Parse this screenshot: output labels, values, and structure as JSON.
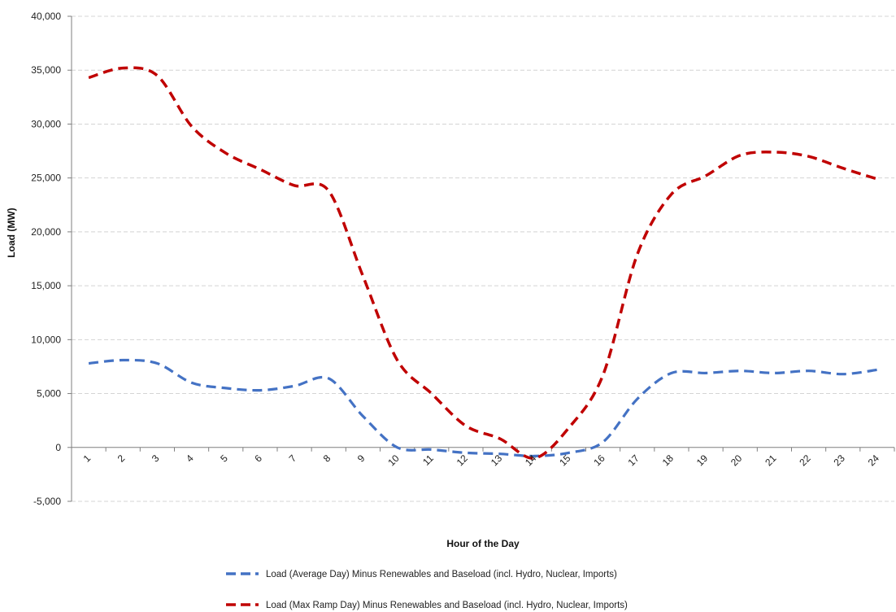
{
  "chart_data": {
    "type": "line",
    "title": "",
    "xlabel": "Hour of the Day",
    "ylabel": "Load (MW)",
    "categories": [
      "1",
      "2",
      "3",
      "4",
      "5",
      "6",
      "7",
      "8",
      "9",
      "10",
      "11",
      "12",
      "13",
      "14",
      "15",
      "16",
      "17",
      "18",
      "19",
      "20",
      "21",
      "22",
      "23",
      "24"
    ],
    "ylim": [
      -5000,
      40000
    ],
    "yticks": [
      -5000,
      0,
      5000,
      10000,
      15000,
      20000,
      25000,
      30000,
      35000,
      40000
    ],
    "ytick_labels": [
      "-5,000",
      "0",
      "5,000",
      "10,000",
      "15,000",
      "20,000",
      "25,000",
      "30,000",
      "35,000",
      "40,000"
    ],
    "grid": true,
    "legend_position": "bottom",
    "series": [
      {
        "name": "Load (Average Day) Minus Renewables and Baseload (incl. Hydro, Nuclear, Imports)",
        "color": "#4472C4",
        "values": [
          7800,
          8100,
          7800,
          6000,
          5500,
          5300,
          5700,
          6400,
          2900,
          0,
          -200,
          -500,
          -600,
          -800,
          -500,
          500,
          4500,
          6900,
          6900,
          7100,
          6900,
          7100,
          6800,
          7200
        ]
      },
      {
        "name": "Load (Max Ramp Day) Minus Renewables and Baseload (incl. Hydro, Nuclear, Imports)",
        "color": "#C00000",
        "values": [
          34300,
          35200,
          34500,
          29800,
          27300,
          25800,
          24300,
          23800,
          15900,
          8100,
          5000,
          2000,
          800,
          -1000,
          1800,
          6700,
          17900,
          23500,
          25200,
          27100,
          27400,
          27000,
          25900,
          24900
        ]
      }
    ]
  }
}
